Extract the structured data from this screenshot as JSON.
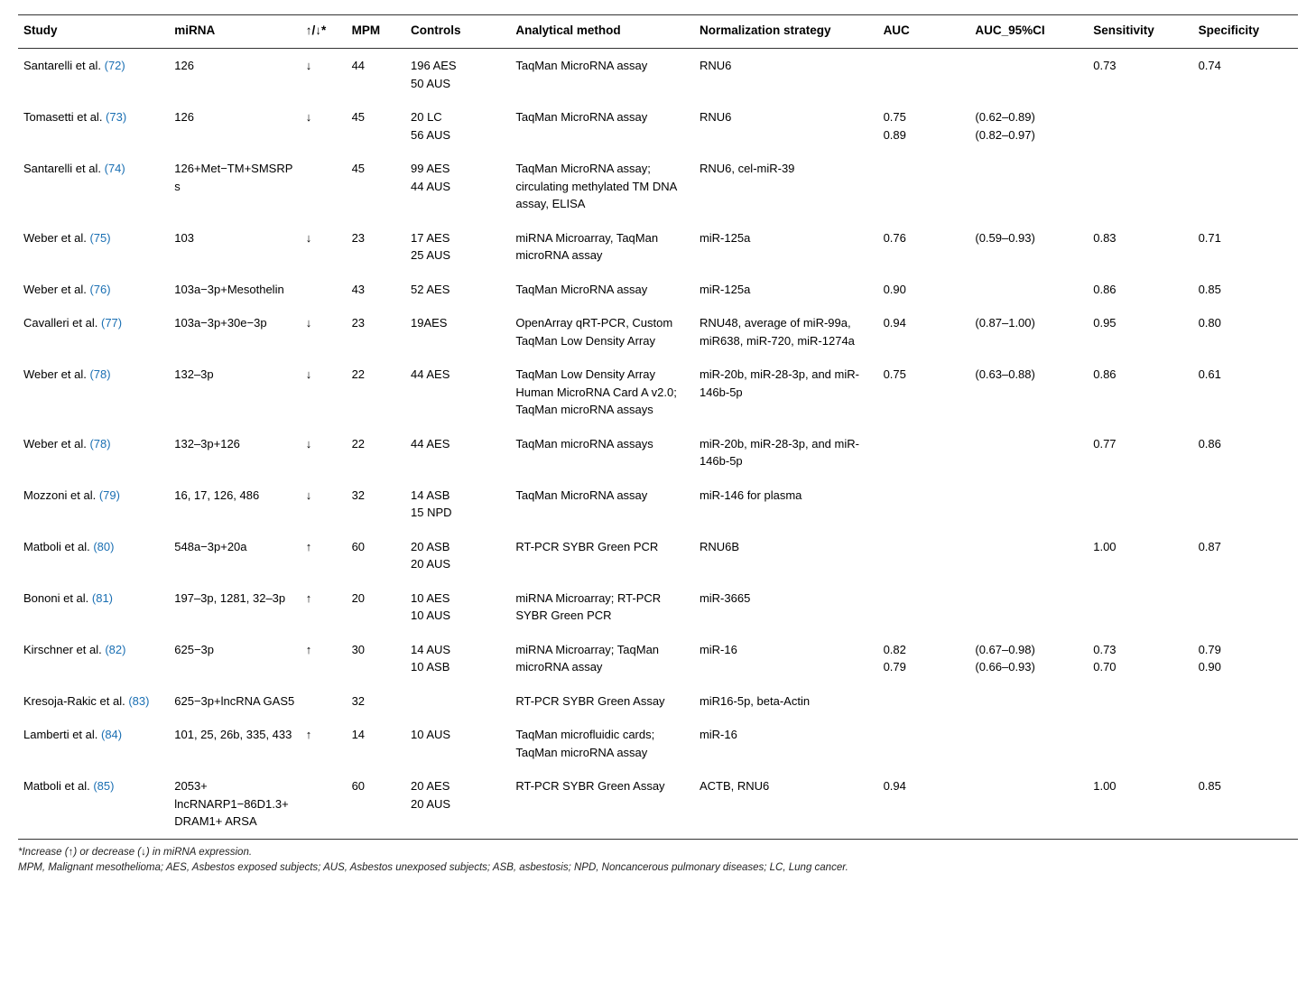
{
  "headers": {
    "study": "Study",
    "mirna": "miRNA",
    "dir": "↑/↓*",
    "mpm": "MPM",
    "controls": "Controls",
    "method": "Analytical method",
    "norm": "Normalization strategy",
    "auc": "AUC",
    "ci": "AUC_95%CI",
    "sens": "Sensitivity",
    "spec": "Specificity"
  },
  "rows": [
    {
      "study_author": "Santarelli et al. ",
      "study_ref": "(72)",
      "mirna": "126",
      "dir": "↓",
      "mpm": "44",
      "controls": "196 AES\n50 AUS",
      "method": "TaqMan MicroRNA assay",
      "norm": "RNU6",
      "auc": "",
      "ci": "",
      "sens": "0.73",
      "spec": "0.74"
    },
    {
      "study_author": "Tomasetti et al. ",
      "study_ref": "(73)",
      "mirna": "126",
      "dir": "↓",
      "mpm": "45",
      "controls": "20 LC\n56 AUS",
      "method": "TaqMan MicroRNA assay",
      "norm": "RNU6",
      "auc": "0.75\n0.89",
      "ci": "(0.62–0.89)\n(0.82–0.97)",
      "sens": "",
      "spec": ""
    },
    {
      "study_author": "Santarelli et al. ",
      "study_ref": "(74)",
      "mirna": "126+Met−TM+SMSRPs",
      "dir": "",
      "mpm": "45",
      "controls": "99 AES\n44 AUS",
      "method": "TaqMan MicroRNA assay; circulating methylated TM DNA assay, ELISA",
      "norm": "RNU6, cel-miR-39",
      "auc": "",
      "ci": "",
      "sens": "",
      "spec": ""
    },
    {
      "study_author": "Weber et al. ",
      "study_ref": "(75)",
      "mirna": "103",
      "dir": "↓",
      "mpm": "23",
      "controls": "17 AES\n25 AUS",
      "method": "miRNA Microarray, TaqMan microRNA assay",
      "norm": "miR-125a",
      "auc": "0.76",
      "ci": "(0.59–0.93)",
      "sens": "0.83",
      "spec": "0.71"
    },
    {
      "study_author": "Weber et al. ",
      "study_ref": "(76)",
      "mirna": "103a−3p+Mesothelin",
      "dir": "",
      "mpm": "43",
      "controls": "52 AES",
      "method": "TaqMan MicroRNA assay",
      "norm": "miR-125a",
      "auc": "0.90",
      "ci": "",
      "sens": "0.86",
      "spec": "0.85"
    },
    {
      "study_author": "Cavalleri et al. ",
      "study_ref": "(77)",
      "mirna": "103a−3p+30e−3p",
      "dir": "↓",
      "mpm": "23",
      "controls": "19AES",
      "method": "OpenArray qRT-PCR, Custom TaqMan Low Density Array",
      "norm": "RNU48, average of miR-99a, miR638, miR-720, miR-1274a",
      "auc": "0.94",
      "ci": "(0.87–1.00)",
      "sens": "0.95",
      "spec": "0.80"
    },
    {
      "study_author": "Weber et al. ",
      "study_ref": "(78)",
      "mirna": "132–3p",
      "dir": "↓",
      "mpm": "22",
      "controls": "44 AES",
      "method": "TaqMan Low Density Array Human MicroRNA Card A v2.0; TaqMan microRNA assays",
      "norm": "miR-20b, miR-28-3p, and miR-146b-5p",
      "auc": "0.75",
      "ci": "(0.63–0.88)",
      "sens": "0.86",
      "spec": "0.61"
    },
    {
      "study_author": "Weber et al. ",
      "study_ref": "(78)",
      "mirna": "132–3p+126",
      "dir": "↓",
      "mpm": "22",
      "controls": "44 AES",
      "method": "TaqMan microRNA assays",
      "norm": "miR-20b, miR-28-3p, and miR-146b-5p",
      "auc": "",
      "ci": "",
      "sens": "0.77",
      "spec": "0.86"
    },
    {
      "study_author": "Mozzoni et al. ",
      "study_ref": "(79)",
      "mirna": "16, 17, 126, 486",
      "dir": "↓",
      "mpm": "32",
      "controls": "14 ASB\n15 NPD",
      "method": "TaqMan MicroRNA assay",
      "norm": "miR-146 for plasma",
      "auc": "",
      "ci": "",
      "sens": "",
      "spec": ""
    },
    {
      "study_author": "Matboli et al. ",
      "study_ref": "(80)",
      "mirna": "548a−3p+20a",
      "dir": "↑",
      "mpm": "60",
      "controls": "20 ASB\n20 AUS",
      "method": "RT-PCR SYBR Green PCR",
      "norm": "RNU6B",
      "auc": "",
      "ci": "",
      "sens": "1.00",
      "spec": "0.87"
    },
    {
      "study_author": "Bononi et al. ",
      "study_ref": "(81)",
      "mirna": "197–3p, 1281, 32–3p",
      "dir": "↑",
      "mpm": "20",
      "controls": "10 AES\n10 AUS",
      "method": "miRNA Microarray; RT-PCR SYBR Green PCR",
      "norm": "miR-3665",
      "auc": "",
      "ci": "",
      "sens": "",
      "spec": ""
    },
    {
      "study_author": "Kirschner et al. ",
      "study_ref": "(82)",
      "mirna": "625−3p",
      "dir": "↑",
      "mpm": "30",
      "controls": "14 AUS\n10 ASB",
      "method": "miRNA Microarray; TaqMan microRNA assay",
      "norm": "miR-16",
      "auc": "0.82\n0.79",
      "ci": "(0.67–0.98)\n(0.66–0.93)",
      "sens": "0.73\n0.70",
      "spec": "0.79\n0.90"
    },
    {
      "study_author": "Kresoja-Rakic et al. ",
      "study_ref": "(83)",
      "mirna": "625−3p+lncRNA GAS5",
      "dir": "",
      "mpm": "32",
      "controls": "",
      "method": "RT-PCR SYBR Green Assay",
      "norm": "miR16-5p, beta-Actin",
      "auc": "",
      "ci": "",
      "sens": "",
      "spec": ""
    },
    {
      "study_author": "Lamberti et al. ",
      "study_ref": "(84)",
      "mirna": "101, 25, 26b, 335, 433",
      "dir": "↑",
      "mpm": "14",
      "controls": "10 AUS",
      "method": "TaqMan microfluidic cards; TaqMan microRNA assay",
      "norm": "miR-16",
      "auc": "",
      "ci": "",
      "sens": "",
      "spec": ""
    },
    {
      "study_author": "Matboli et al. ",
      "study_ref": "(85)",
      "mirna": "2053+ lncRNARP1−86D1.3+ DRAM1+ ARSA",
      "dir": "",
      "mpm": "60",
      "controls": "20 AES\n20 AUS",
      "method": "RT-PCR SYBR Green Assay",
      "norm": "ACTB, RNU6",
      "auc": "0.94",
      "ci": "",
      "sens": "1.00",
      "spec": "0.85"
    }
  ],
  "footnotes": {
    "line1": "*Increase (↑) or decrease (↓) in miRNA expression.",
    "line2": "MPM, Malignant mesothelioma; AES, Asbestos exposed subjects; AUS, Asbestos unexposed subjects; ASB, asbestosis; NPD, Noncancerous pulmonary diseases; LC, Lung cancer."
  }
}
